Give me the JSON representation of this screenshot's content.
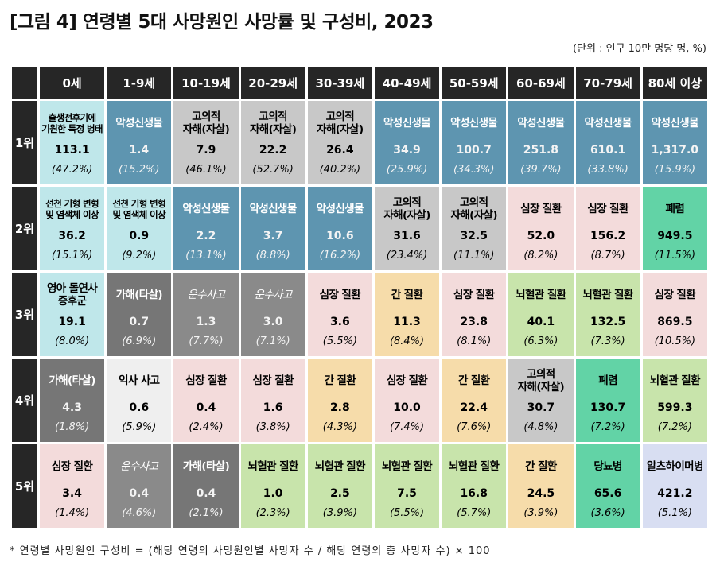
{
  "title": "[그림 4] 연령별 5대 사망원인 사망률 및 구성비, 2023",
  "unit": "(단위 : 인구 10만 명당 명, %)",
  "footnote": "* 연령별 사망원인 구성비 = (해당 연령의 사망원인별 사망자 수 / 해당 연령의 총 사망자 수) × 100",
  "colors": {
    "cyan": "#bfe7ea",
    "blue": "#5e95b0",
    "lgray": "#c8c8c8",
    "dgray": "#767676",
    "gray": "#8a8a8a",
    "pink": "#f3dbdb",
    "beige": "#f6dcaa",
    "lgreen": "#c8e4ab",
    "teal": "#62d3a6",
    "white": "#efefef",
    "lav": "#d8def2"
  },
  "age_groups": [
    "0세",
    "1-9세",
    "10-19세",
    "20-29세",
    "30-39세",
    "40-49세",
    "50-59세",
    "60-69세",
    "70-79세",
    "80세 이상"
  ],
  "rows": [
    {
      "rank": "1위",
      "cells": [
        {
          "cause": "출생전후기에\n기원한 특정 병태",
          "rate": "113.1",
          "pct": "(47.2%)",
          "color": "cyan",
          "small": true
        },
        {
          "cause": "악성신생물",
          "rate": "1.4",
          "pct": "(15.2%)",
          "color": "blue",
          "white": true
        },
        {
          "cause": "고의적\n자해(자살)",
          "rate": "7.9",
          "pct": "(46.1%)",
          "color": "lgray"
        },
        {
          "cause": "고의적\n자해(자살)",
          "rate": "22.2",
          "pct": "(52.7%)",
          "color": "lgray"
        },
        {
          "cause": "고의적\n자해(자살)",
          "rate": "26.4",
          "pct": "(40.2%)",
          "color": "lgray"
        },
        {
          "cause": "악성신생물",
          "rate": "34.9",
          "pct": "(25.9%)",
          "color": "blue",
          "white": true
        },
        {
          "cause": "악성신생물",
          "rate": "100.7",
          "pct": "(34.3%)",
          "color": "blue",
          "white": true
        },
        {
          "cause": "악성신생물",
          "rate": "251.8",
          "pct": "(39.7%)",
          "color": "blue",
          "white": true
        },
        {
          "cause": "악성신생물",
          "rate": "610.1",
          "pct": "(33.8%)",
          "color": "blue",
          "white": true
        },
        {
          "cause": "악성신생물",
          "rate": "1,317.0",
          "pct": "(15.9%)",
          "color": "blue",
          "white": true
        }
      ]
    },
    {
      "rank": "2위",
      "cells": [
        {
          "cause": "선천 기형 변형\n및 염색체 이상",
          "rate": "36.2",
          "pct": "(15.1%)",
          "color": "cyan",
          "small": true
        },
        {
          "cause": "선천 기형 변형\n및 염색체 이상",
          "rate": "0.9",
          "pct": "(9.2%)",
          "color": "cyan",
          "small": true
        },
        {
          "cause": "악성신생물",
          "rate": "2.2",
          "pct": "(13.1%)",
          "color": "blue",
          "white": true
        },
        {
          "cause": "악성신생물",
          "rate": "3.7",
          "pct": "(8.8%)",
          "color": "blue",
          "white": true
        },
        {
          "cause": "악성신생물",
          "rate": "10.6",
          "pct": "(16.2%)",
          "color": "blue",
          "white": true
        },
        {
          "cause": "고의적\n자해(자살)",
          "rate": "31.6",
          "pct": "(23.4%)",
          "color": "lgray"
        },
        {
          "cause": "고의적\n자해(자살)",
          "rate": "32.5",
          "pct": "(11.1%)",
          "color": "lgray"
        },
        {
          "cause": "심장 질환",
          "rate": "52.0",
          "pct": "(8.2%)",
          "color": "pink"
        },
        {
          "cause": "심장 질환",
          "rate": "156.2",
          "pct": "(8.7%)",
          "color": "pink"
        },
        {
          "cause": "폐렴",
          "rate": "949.5",
          "pct": "(11.5%)",
          "color": "teal"
        }
      ]
    },
    {
      "rank": "3위",
      "cells": [
        {
          "cause": "영아 돌연사\n증후군",
          "rate": "19.1",
          "pct": "(8.0%)",
          "color": "cyan"
        },
        {
          "cause": "가해(타살)",
          "rate": "0.7",
          "pct": "(6.9%)",
          "color": "dgray",
          "white": true
        },
        {
          "cause": "운수사고",
          "rate": "1.3",
          "pct": "(7.7%)",
          "color": "gray",
          "white": true,
          "italic": true
        },
        {
          "cause": "운수사고",
          "rate": "3.0",
          "pct": "(7.1%)",
          "color": "gray",
          "white": true,
          "italic": true
        },
        {
          "cause": "심장 질환",
          "rate": "3.6",
          "pct": "(5.5%)",
          "color": "pink"
        },
        {
          "cause": "간 질환",
          "rate": "11.3",
          "pct": "(8.4%)",
          "color": "beige"
        },
        {
          "cause": "심장 질환",
          "rate": "23.8",
          "pct": "(8.1%)",
          "color": "pink"
        },
        {
          "cause": "뇌혈관 질환",
          "rate": "40.1",
          "pct": "(6.3%)",
          "color": "lgreen"
        },
        {
          "cause": "뇌혈관 질환",
          "rate": "132.5",
          "pct": "(7.3%)",
          "color": "lgreen"
        },
        {
          "cause": "심장 질환",
          "rate": "869.5",
          "pct": "(10.5%)",
          "color": "pink"
        }
      ]
    },
    {
      "rank": "4위",
      "cells": [
        {
          "cause": "가해(타살)",
          "rate": "4.3",
          "pct": "(1.8%)",
          "color": "dgray",
          "white": true
        },
        {
          "cause": "익사 사고",
          "rate": "0.6",
          "pct": "(5.9%)",
          "color": "white"
        },
        {
          "cause": "심장 질환",
          "rate": "0.4",
          "pct": "(2.4%)",
          "color": "pink"
        },
        {
          "cause": "심장 질환",
          "rate": "1.6",
          "pct": "(3.8%)",
          "color": "pink"
        },
        {
          "cause": "간 질환",
          "rate": "2.8",
          "pct": "(4.3%)",
          "color": "beige"
        },
        {
          "cause": "심장 질환",
          "rate": "10.0",
          "pct": "(7.4%)",
          "color": "pink"
        },
        {
          "cause": "간 질환",
          "rate": "22.4",
          "pct": "(7.6%)",
          "color": "beige"
        },
        {
          "cause": "고의적\n자해(자살)",
          "rate": "30.7",
          "pct": "(4.8%)",
          "color": "lgray"
        },
        {
          "cause": "폐렴",
          "rate": "130.7",
          "pct": "(7.2%)",
          "color": "teal"
        },
        {
          "cause": "뇌혈관 질환",
          "rate": "599.3",
          "pct": "(7.2%)",
          "color": "lgreen"
        }
      ]
    },
    {
      "rank": "5위",
      "cells": [
        {
          "cause": "심장 질환",
          "rate": "3.4",
          "pct": "(1.4%)",
          "color": "pink"
        },
        {
          "cause": "운수사고",
          "rate": "0.4",
          "pct": "(4.6%)",
          "color": "gray",
          "white": true,
          "italic": true
        },
        {
          "cause": "가해(타살)",
          "rate": "0.4",
          "pct": "(2.1%)",
          "color": "dgray",
          "white": true
        },
        {
          "cause": "뇌혈관 질환",
          "rate": "1.0",
          "pct": "(2.3%)",
          "color": "lgreen"
        },
        {
          "cause": "뇌혈관 질환",
          "rate": "2.5",
          "pct": "(3.9%)",
          "color": "lgreen"
        },
        {
          "cause": "뇌혈관 질환",
          "rate": "7.5",
          "pct": "(5.5%)",
          "color": "lgreen"
        },
        {
          "cause": "뇌혈관 질환",
          "rate": "16.8",
          "pct": "(5.7%)",
          "color": "lgreen"
        },
        {
          "cause": "간 질환",
          "rate": "24.5",
          "pct": "(3.9%)",
          "color": "beige"
        },
        {
          "cause": "당뇨병",
          "rate": "65.6",
          "pct": "(3.6%)",
          "color": "teal"
        },
        {
          "cause": "알츠하이머병",
          "rate": "421.2",
          "pct": "(5.1%)",
          "color": "lav"
        }
      ]
    }
  ]
}
